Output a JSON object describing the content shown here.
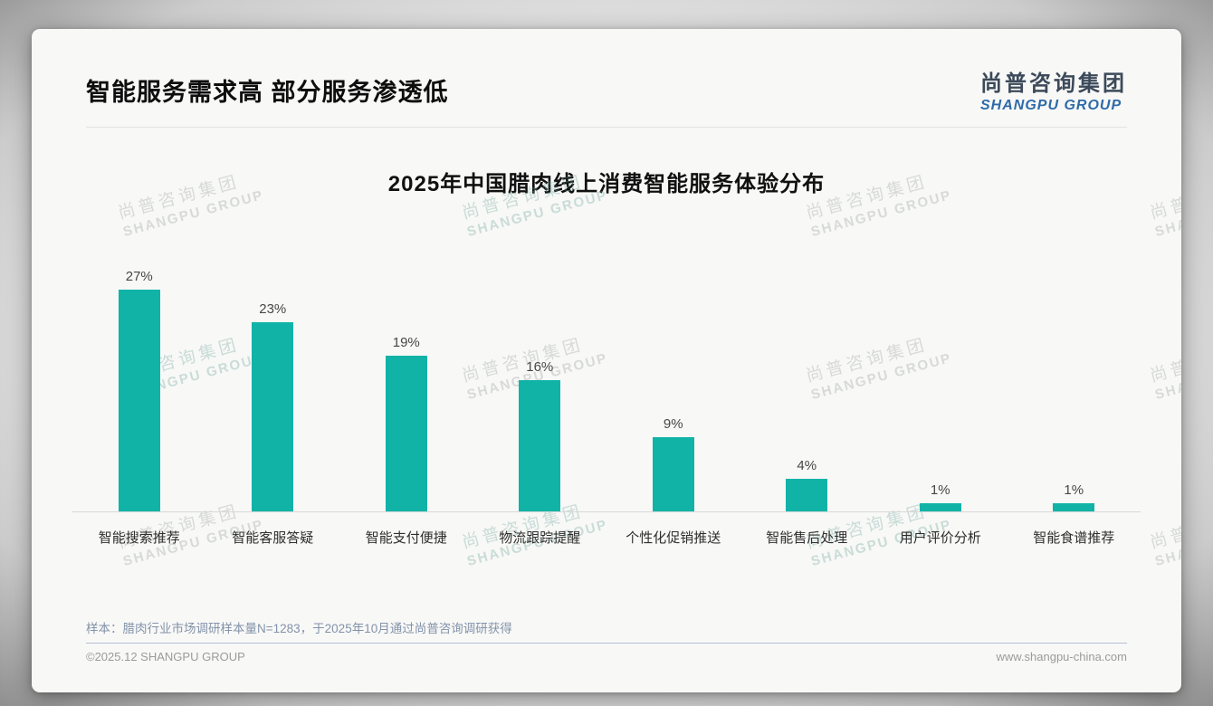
{
  "page": {
    "title": "智能服务需求高 部分服务渗透低",
    "logo": {
      "cn": "尚普咨询集团",
      "en": "SHANGPU GROUP"
    },
    "watermark": {
      "line1": "尚普咨询集团",
      "line2": "SHANGPU GROUP"
    },
    "footnote": "样本：腊肉行业市场调研样本量N=1283，于2025年10月通过尚普咨询调研获得",
    "footer": {
      "left": "©2025.12 SHANGPU GROUP",
      "right": "www.shangpu-china.com"
    }
  },
  "chart_data": {
    "type": "bar",
    "title": "2025年中国腊肉线上消费智能服务体验分布",
    "categories": [
      "智能搜索推荐",
      "智能客服答疑",
      "智能支付便捷",
      "物流跟踪提醒",
      "个性化促销推送",
      "智能售后处理",
      "用户评价分析",
      "智能食谱推荐"
    ],
    "values": [
      27,
      23,
      19,
      16,
      9,
      4,
      1,
      1
    ],
    "unit": "%",
    "xlabel": "",
    "ylabel": "",
    "ylim": [
      0,
      30
    ],
    "grid": false,
    "legend": "none",
    "bar_color": "#11b3a7",
    "value_label_color": "#474747",
    "axis_line_color": "#d8d8d8"
  }
}
